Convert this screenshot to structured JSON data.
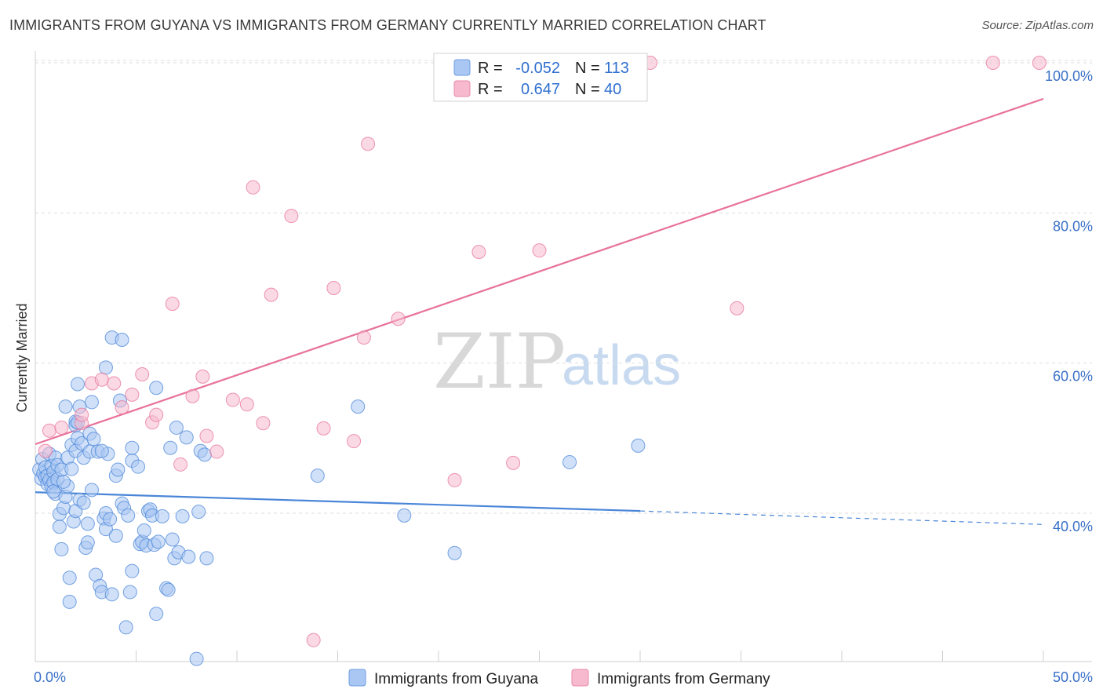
{
  "header": {
    "title": "IMMIGRANTS FROM GUYANA VS IMMIGRANTS FROM GERMANY CURRENTLY MARRIED CORRELATION CHART",
    "source": "Source: ZipAtlas.com"
  },
  "watermark": {
    "part1": "ZIP",
    "part2": "atlas"
  },
  "legend_box": {
    "rows": [
      {
        "r_label": "R =",
        "r_value": "-0.052",
        "n_label": "N =",
        "n_value": "113",
        "color": "#a9c7f2"
      },
      {
        "r_label": "R =",
        "r_value": "0.647",
        "n_label": "N =",
        "n_value": "40",
        "color": "#f6b9cd"
      }
    ]
  },
  "bottom_legend": {
    "items": [
      {
        "label": "Immigrants from Guyana",
        "color": "#a9c7f2"
      },
      {
        "label": "Immigrants from Germany",
        "color": "#f6b9cd"
      }
    ]
  },
  "chart_data": {
    "type": "scatter",
    "title": "IMMIGRANTS FROM GUYANA VS IMMIGRANTS FROM GERMANY CURRENTLY MARRIED CORRELATION CHART",
    "xlabel": "",
    "ylabel": "Currently Married",
    "xlim": [
      0,
      50
    ],
    "ylim": [
      20,
      102
    ],
    "x_tick_labels": [
      "0.0%",
      "50.0%"
    ],
    "y_tick_labels": [
      "40.0%",
      "60.0%",
      "80.0%",
      "100.0%"
    ],
    "y_ticks": [
      40,
      60,
      80,
      100
    ],
    "grid": true,
    "legend_position": "top-center",
    "series": [
      {
        "name": "Immigrants from Guyana",
        "color": "#4a86d8",
        "fill": "#a9c7f2",
        "r": -0.052,
        "n": 113,
        "trend": {
          "x0": 0,
          "y0": 42.8,
          "x1": 30,
          "y1": 40.3,
          "dash_to_x": 50,
          "dash_to_y": 38.5
        },
        "points": [
          [
            0.2,
            45.8
          ],
          [
            0.3,
            44.6
          ],
          [
            0.35,
            47.2
          ],
          [
            0.4,
            45.3
          ],
          [
            0.5,
            44.8
          ],
          [
            0.5,
            46.1
          ],
          [
            0.6,
            43.9
          ],
          [
            0.6,
            45.0
          ],
          [
            0.7,
            47.9
          ],
          [
            0.7,
            44.4
          ],
          [
            0.8,
            46.3
          ],
          [
            0.8,
            43.6
          ],
          [
            0.9,
            45.5
          ],
          [
            0.9,
            44.1
          ],
          [
            1.0,
            47.4
          ],
          [
            1.0,
            42.6
          ],
          [
            1.1,
            44.5
          ],
          [
            1.1,
            46.4
          ],
          [
            1.2,
            39.9
          ],
          [
            1.2,
            38.2
          ],
          [
            1.3,
            45.8
          ],
          [
            1.3,
            35.2
          ],
          [
            1.4,
            40.7
          ],
          [
            1.5,
            54.2
          ],
          [
            1.5,
            42.2
          ],
          [
            1.6,
            47.4
          ],
          [
            1.6,
            43.6
          ],
          [
            1.7,
            31.4
          ],
          [
            1.7,
            28.2
          ],
          [
            1.8,
            49.1
          ],
          [
            1.8,
            45.9
          ],
          [
            1.9,
            38.9
          ],
          [
            2.0,
            52.2
          ],
          [
            2.0,
            51.7
          ],
          [
            2.0,
            48.3
          ],
          [
            2.0,
            40.3
          ],
          [
            2.1,
            57.2
          ],
          [
            2.1,
            50.0
          ],
          [
            2.2,
            54.2
          ],
          [
            2.2,
            41.8
          ],
          [
            2.3,
            49.3
          ],
          [
            2.4,
            41.4
          ],
          [
            2.4,
            47.4
          ],
          [
            2.5,
            35.4
          ],
          [
            2.6,
            38.6
          ],
          [
            2.6,
            36.1
          ],
          [
            2.7,
            50.6
          ],
          [
            2.7,
            48.2
          ],
          [
            2.8,
            43.1
          ],
          [
            2.8,
            54.8
          ],
          [
            2.9,
            49.9
          ],
          [
            3.0,
            31.8
          ],
          [
            3.1,
            48.2
          ],
          [
            3.2,
            30.3
          ],
          [
            3.3,
            29.5
          ],
          [
            3.4,
            39.3
          ],
          [
            3.5,
            40.0
          ],
          [
            3.5,
            37.9
          ],
          [
            3.5,
            59.4
          ],
          [
            3.6,
            47.9
          ],
          [
            3.7,
            39.2
          ],
          [
            3.8,
            29.2
          ],
          [
            3.8,
            63.4
          ],
          [
            4.0,
            45.0
          ],
          [
            4.0,
            37.0
          ],
          [
            4.1,
            45.8
          ],
          [
            4.3,
            63.1
          ],
          [
            4.3,
            41.3
          ],
          [
            4.4,
            40.7
          ],
          [
            4.5,
            24.8
          ],
          [
            4.6,
            39.7
          ],
          [
            4.7,
            29.5
          ],
          [
            4.8,
            47.0
          ],
          [
            4.8,
            48.7
          ],
          [
            4.8,
            32.3
          ],
          [
            5.1,
            46.2
          ],
          [
            5.2,
            35.9
          ],
          [
            5.3,
            36.2
          ],
          [
            5.4,
            37.7
          ],
          [
            5.5,
            35.7
          ],
          [
            5.6,
            40.3
          ],
          [
            5.7,
            40.5
          ],
          [
            5.8,
            39.7
          ],
          [
            5.9,
            35.8
          ],
          [
            6.0,
            26.6
          ],
          [
            6.0,
            56.7
          ],
          [
            6.1,
            36.2
          ],
          [
            6.3,
            39.6
          ],
          [
            6.5,
            30.0
          ],
          [
            6.6,
            29.8
          ],
          [
            6.7,
            48.7
          ],
          [
            6.8,
            36.5
          ],
          [
            6.9,
            34.0
          ],
          [
            7.0,
            51.4
          ],
          [
            7.1,
            34.8
          ],
          [
            7.3,
            39.6
          ],
          [
            7.5,
            50.1
          ],
          [
            7.6,
            34.2
          ],
          [
            8.0,
            20.6
          ],
          [
            8.1,
            40.2
          ],
          [
            8.2,
            48.3
          ],
          [
            8.4,
            47.8
          ],
          [
            8.5,
            34.0
          ],
          [
            14.0,
            45.0
          ],
          [
            16.0,
            54.2
          ],
          [
            18.3,
            39.7
          ],
          [
            20.8,
            34.7
          ],
          [
            26.5,
            46.8
          ],
          [
            29.9,
            49.0
          ],
          [
            2.1,
            52.1
          ],
          [
            1.4,
            44.2
          ],
          [
            0.9,
            42.9
          ],
          [
            3.3,
            48.3
          ],
          [
            4.2,
            55.0
          ]
        ]
      },
      {
        "name": "Immigrants from Germany",
        "color": "#e8729a",
        "fill": "#f6b9cd",
        "r": 0.647,
        "n": 40,
        "trend": {
          "x0": 0,
          "y0": 49.2,
          "x1": 50,
          "y1": 95.2
        },
        "points": [
          [
            0.5,
            48.3
          ],
          [
            0.7,
            51.0
          ],
          [
            1.3,
            51.4
          ],
          [
            2.3,
            52.0
          ],
          [
            2.3,
            53.1
          ],
          [
            2.8,
            57.3
          ],
          [
            3.3,
            57.8
          ],
          [
            3.9,
            57.3
          ],
          [
            4.3,
            54.1
          ],
          [
            4.8,
            55.8
          ],
          [
            5.3,
            58.5
          ],
          [
            5.8,
            52.1
          ],
          [
            6.0,
            53.1
          ],
          [
            6.8,
            67.9
          ],
          [
            7.2,
            46.5
          ],
          [
            7.8,
            55.6
          ],
          [
            8.3,
            58.2
          ],
          [
            8.5,
            50.3
          ],
          [
            9.0,
            48.2
          ],
          [
            9.8,
            55.1
          ],
          [
            10.5,
            54.5
          ],
          [
            10.8,
            83.4
          ],
          [
            11.3,
            52.0
          ],
          [
            11.7,
            69.1
          ],
          [
            12.7,
            79.6
          ],
          [
            13.8,
            23.1
          ],
          [
            14.3,
            51.3
          ],
          [
            14.8,
            70.0
          ],
          [
            15.8,
            49.6
          ],
          [
            16.3,
            63.4
          ],
          [
            16.5,
            89.2
          ],
          [
            18.0,
            65.9
          ],
          [
            20.8,
            44.4
          ],
          [
            22.0,
            74.8
          ],
          [
            23.7,
            46.7
          ],
          [
            25.0,
            75.0
          ],
          [
            30.5,
            100.0
          ],
          [
            34.8,
            67.3
          ],
          [
            47.5,
            100.0
          ],
          [
            49.8,
            100.0
          ]
        ]
      }
    ]
  }
}
